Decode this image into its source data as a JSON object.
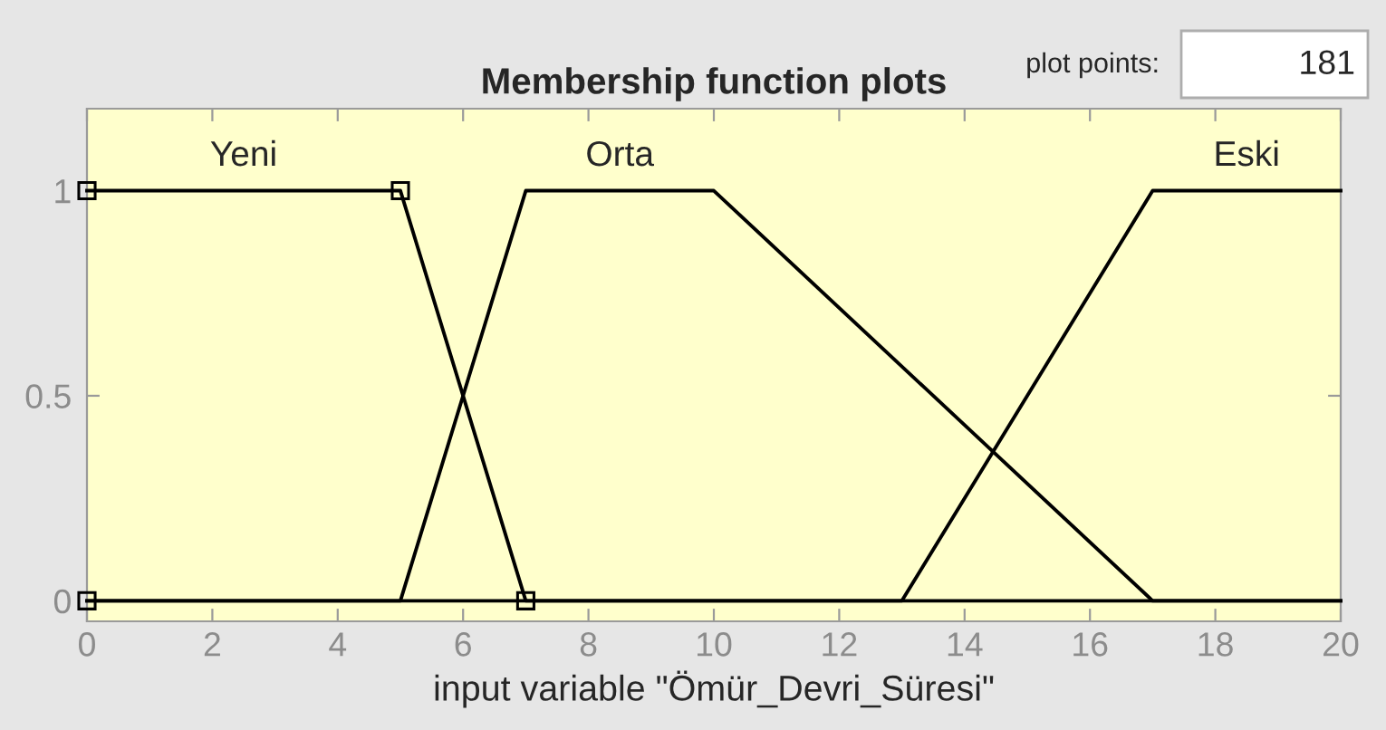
{
  "chart_data": {
    "type": "line",
    "title": "Membership function plots",
    "xlabel": "input variable \"Ömür_Devri_Süresi\"",
    "series": [
      {
        "name": "Yeni",
        "color": "#000000",
        "x": [
          0,
          5,
          7,
          20
        ],
        "values": [
          1,
          1,
          0,
          0
        ]
      },
      {
        "name": "Orta",
        "color": "#000000",
        "x": [
          0,
          5,
          7,
          10,
          17,
          20
        ],
        "values": [
          0,
          0,
          1,
          1,
          0,
          0
        ]
      },
      {
        "name": "Eski",
        "color": "#000000",
        "x": [
          0,
          13,
          17,
          20
        ],
        "values": [
          0,
          0,
          1,
          1
        ]
      },
      {
        "type": "scatter",
        "color": "#000000",
        "marker": "square",
        "x": [
          0,
          0,
          5,
          7
        ],
        "values": [
          0,
          1,
          1,
          0
        ]
      }
    ],
    "xlim": [
      0,
      20
    ],
    "ylim": [
      -0.05,
      1.2
    ],
    "xticks": [
      0,
      2,
      4,
      6,
      8,
      10,
      12,
      14,
      16,
      18,
      20
    ],
    "yticks": [
      0,
      0.5,
      1
    ],
    "annotations": [
      "plot points:",
      "181"
    ]
  }
}
